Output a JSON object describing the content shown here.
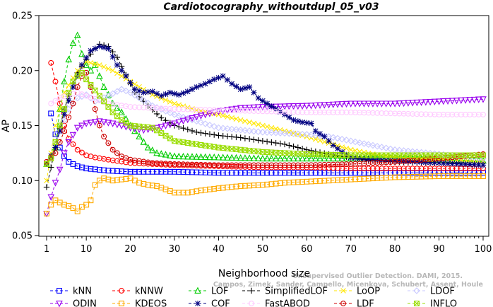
{
  "chart_data": {
    "type": "line",
    "title": "Cardiotocography_withoutdupl_05_v03",
    "xlabel": "Neighborhood size",
    "ylabel": "AP",
    "xlim": [
      1,
      100
    ],
    "ylim": [
      0.05,
      0.25
    ],
    "xticks": [
      "1",
      "10",
      "20",
      "30",
      "40",
      "50",
      "60",
      "70",
      "80",
      "90",
      "100"
    ],
    "yticks": [
      "0.05",
      "0.10",
      "0.15",
      "0.20",
      "0.25"
    ],
    "legend_position": "bottom",
    "watermark": [
      "Campos, Zimek, Sander, Campello, Micenkova, Schubert, Assent, Houle",
      "Unsupervised Outlier Detection. DAMI, 2015."
    ],
    "series": [
      {
        "name": "kNN",
        "color": "#0000ff",
        "marker": "square",
        "dash": "4,3",
        "points": [
          [
            2,
            0.161
          ],
          [
            3,
            0.142
          ],
          [
            4,
            0.13
          ],
          [
            5,
            0.122
          ],
          [
            6,
            0.117
          ],
          [
            8,
            0.113
          ],
          [
            10,
            0.111
          ],
          [
            15,
            0.109
          ],
          [
            20,
            0.108
          ],
          [
            30,
            0.108
          ],
          [
            40,
            0.107
          ],
          [
            50,
            0.107
          ],
          [
            60,
            0.107
          ],
          [
            70,
            0.107
          ],
          [
            80,
            0.107
          ],
          [
            90,
            0.107
          ],
          [
            100,
            0.107
          ]
        ]
      },
      {
        "name": "kNNW",
        "color": "#ff0000",
        "marker": "circle",
        "dash": "4,3",
        "points": [
          [
            2,
            0.207
          ],
          [
            3,
            0.19
          ],
          [
            4,
            0.17
          ],
          [
            5,
            0.15
          ],
          [
            6,
            0.138
          ],
          [
            8,
            0.128
          ],
          [
            10,
            0.123
          ],
          [
            12,
            0.121
          ],
          [
            15,
            0.119
          ],
          [
            20,
            0.116
          ],
          [
            30,
            0.114
          ],
          [
            40,
            0.113
          ],
          [
            50,
            0.112
          ],
          [
            60,
            0.112
          ],
          [
            70,
            0.111
          ],
          [
            80,
            0.111
          ],
          [
            90,
            0.111
          ],
          [
            100,
            0.111
          ]
        ]
      },
      {
        "name": "LOF",
        "color": "#00cc00",
        "marker": "triangle",
        "dash": "4,3",
        "points": [
          [
            1,
            0.115
          ],
          [
            3,
            0.13
          ],
          [
            4,
            0.165
          ],
          [
            5,
            0.19
          ],
          [
            6,
            0.21
          ],
          [
            7,
            0.225
          ],
          [
            8,
            0.232
          ],
          [
            9,
            0.215
          ],
          [
            10,
            0.205
          ],
          [
            11,
            0.2
          ],
          [
            12,
            0.205
          ],
          [
            13,
            0.195
          ],
          [
            14,
            0.185
          ],
          [
            15,
            0.178
          ],
          [
            16,
            0.17
          ],
          [
            18,
            0.162
          ],
          [
            20,
            0.15
          ],
          [
            22,
            0.14
          ],
          [
            24,
            0.13
          ],
          [
            26,
            0.125
          ],
          [
            30,
            0.122
          ],
          [
            40,
            0.121
          ],
          [
            50,
            0.12
          ],
          [
            60,
            0.12
          ],
          [
            70,
            0.12
          ],
          [
            80,
            0.12
          ],
          [
            90,
            0.119
          ],
          [
            100,
            0.118
          ]
        ]
      },
      {
        "name": "SimplifiedLOF",
        "color": "#000000",
        "marker": "plus",
        "dash": "4,3",
        "points": [
          [
            1,
            0.094
          ],
          [
            3,
            0.13
          ],
          [
            5,
            0.165
          ],
          [
            7,
            0.188
          ],
          [
            8,
            0.198
          ],
          [
            10,
            0.21
          ],
          [
            12,
            0.22
          ],
          [
            13,
            0.224
          ],
          [
            15,
            0.222
          ],
          [
            17,
            0.212
          ],
          [
            19,
            0.196
          ],
          [
            21,
            0.18
          ],
          [
            24,
            0.168
          ],
          [
            27,
            0.157
          ],
          [
            30,
            0.15
          ],
          [
            35,
            0.144
          ],
          [
            40,
            0.141
          ],
          [
            45,
            0.139
          ],
          [
            50,
            0.136
          ],
          [
            55,
            0.133
          ],
          [
            60,
            0.128
          ],
          [
            65,
            0.124
          ],
          [
            70,
            0.121
          ],
          [
            75,
            0.118
          ],
          [
            80,
            0.117
          ],
          [
            90,
            0.116
          ],
          [
            100,
            0.116
          ]
        ]
      },
      {
        "name": "LoOP",
        "color": "#ffe600",
        "marker": "x",
        "dash": "4,3",
        "points": [
          [
            1,
            0.1
          ],
          [
            3,
            0.15
          ],
          [
            5,
            0.18
          ],
          [
            8,
            0.2
          ],
          [
            10,
            0.208
          ],
          [
            13,
            0.205
          ],
          [
            16,
            0.2
          ],
          [
            20,
            0.19
          ],
          [
            25,
            0.178
          ],
          [
            30,
            0.17
          ],
          [
            35,
            0.164
          ],
          [
            40,
            0.16
          ],
          [
            45,
            0.155
          ],
          [
            50,
            0.15
          ],
          [
            55,
            0.145
          ],
          [
            60,
            0.14
          ],
          [
            65,
            0.134
          ],
          [
            70,
            0.128
          ],
          [
            75,
            0.124
          ],
          [
            80,
            0.121
          ],
          [
            90,
            0.119
          ],
          [
            100,
            0.118
          ]
        ]
      },
      {
        "name": "LDOF",
        "color": "#c8c8ff",
        "marker": "diamond",
        "dash": "4,3",
        "points": [
          [
            2,
            0.12
          ],
          [
            4,
            0.145
          ],
          [
            6,
            0.165
          ],
          [
            8,
            0.175
          ],
          [
            10,
            0.178
          ],
          [
            12,
            0.172
          ],
          [
            15,
            0.177
          ],
          [
            18,
            0.183
          ],
          [
            20,
            0.18
          ],
          [
            25,
            0.168
          ],
          [
            30,
            0.16
          ],
          [
            35,
            0.154
          ],
          [
            40,
            0.148
          ],
          [
            45,
            0.146
          ],
          [
            50,
            0.144
          ],
          [
            55,
            0.143
          ],
          [
            60,
            0.142
          ],
          [
            65,
            0.14
          ],
          [
            70,
            0.136
          ],
          [
            80,
            0.128
          ],
          [
            90,
            0.124
          ],
          [
            100,
            0.12
          ]
        ]
      },
      {
        "name": "ODIN",
        "color": "#9900ee",
        "marker": "triangle-down",
        "dash": "4,3",
        "points": [
          [
            1,
            0.07
          ],
          [
            2,
            0.085
          ],
          [
            3,
            0.098
          ],
          [
            4,
            0.11
          ],
          [
            5,
            0.125
          ],
          [
            6,
            0.135
          ],
          [
            8,
            0.148
          ],
          [
            10,
            0.152
          ],
          [
            13,
            0.154
          ],
          [
            16,
            0.152
          ],
          [
            20,
            0.148
          ],
          [
            23,
            0.146
          ],
          [
            26,
            0.148
          ],
          [
            30,
            0.152
          ],
          [
            35,
            0.158
          ],
          [
            40,
            0.163
          ],
          [
            45,
            0.166
          ],
          [
            50,
            0.167
          ],
          [
            60,
            0.168
          ],
          [
            70,
            0.17
          ],
          [
            80,
            0.17
          ],
          [
            90,
            0.172
          ],
          [
            100,
            0.174
          ]
        ]
      },
      {
        "name": "KDEOS",
        "color": "#ffaa00",
        "marker": "square",
        "dash": "4,3",
        "points": [
          [
            1,
            0.07
          ],
          [
            2,
            0.078
          ],
          [
            3,
            0.082
          ],
          [
            4,
            0.08
          ],
          [
            5,
            0.078
          ],
          [
            6,
            0.077
          ],
          [
            7,
            0.075
          ],
          [
            8,
            0.072
          ],
          [
            9,
            0.076
          ],
          [
            10,
            0.078
          ],
          [
            11,
            0.082
          ],
          [
            12,
            0.096
          ],
          [
            13,
            0.1
          ],
          [
            14,
            0.102
          ],
          [
            16,
            0.1
          ],
          [
            18,
            0.101
          ],
          [
            20,
            0.102
          ],
          [
            22,
            0.098
          ],
          [
            24,
            0.096
          ],
          [
            26,
            0.095
          ],
          [
            28,
            0.092
          ],
          [
            30,
            0.089
          ],
          [
            33,
            0.089
          ],
          [
            36,
            0.091
          ],
          [
            40,
            0.093
          ],
          [
            45,
            0.095
          ],
          [
            50,
            0.096
          ],
          [
            55,
            0.098
          ],
          [
            60,
            0.099
          ],
          [
            70,
            0.101
          ],
          [
            80,
            0.103
          ],
          [
            90,
            0.104
          ],
          [
            100,
            0.104
          ]
        ]
      },
      {
        "name": "COF",
        "color": "#000080",
        "marker": "star",
        "dash": "4,3",
        "points": [
          [
            1,
            0.115
          ],
          [
            3,
            0.13
          ],
          [
            5,
            0.16
          ],
          [
            7,
            0.185
          ],
          [
            9,
            0.205
          ],
          [
            11,
            0.218
          ],
          [
            12,
            0.22
          ],
          [
            13,
            0.222
          ],
          [
            15,
            0.22
          ],
          [
            17,
            0.205
          ],
          [
            19,
            0.195
          ],
          [
            21,
            0.183
          ],
          [
            23,
            0.18
          ],
          [
            25,
            0.181
          ],
          [
            27,
            0.177
          ],
          [
            29,
            0.18
          ],
          [
            31,
            0.178
          ],
          [
            33,
            0.181
          ],
          [
            35,
            0.185
          ],
          [
            37,
            0.188
          ],
          [
            39,
            0.192
          ],
          [
            41,
            0.195
          ],
          [
            43,
            0.188
          ],
          [
            45,
            0.183
          ],
          [
            47,
            0.185
          ],
          [
            49,
            0.175
          ],
          [
            51,
            0.17
          ],
          [
            53,
            0.165
          ],
          [
            55,
            0.16
          ],
          [
            57,
            0.155
          ],
          [
            59,
            0.153
          ],
          [
            61,
            0.152
          ],
          [
            62,
            0.145
          ],
          [
            64,
            0.14
          ],
          [
            66,
            0.132
          ],
          [
            68,
            0.126
          ],
          [
            70,
            0.121
          ],
          [
            75,
            0.119
          ],
          [
            80,
            0.118
          ],
          [
            90,
            0.116
          ],
          [
            100,
            0.114
          ]
        ]
      },
      {
        "name": "FastABOD",
        "color": "#ffc8ff",
        "marker": "circle",
        "dash": "4,3",
        "points": [
          [
            2,
            0.17
          ],
          [
            4,
            0.175
          ],
          [
            6,
            0.178
          ],
          [
            8,
            0.18
          ],
          [
            10,
            0.177
          ],
          [
            15,
            0.17
          ],
          [
            20,
            0.167
          ],
          [
            30,
            0.165
          ],
          [
            40,
            0.164
          ],
          [
            50,
            0.163
          ],
          [
            60,
            0.162
          ],
          [
            70,
            0.162
          ],
          [
            80,
            0.161
          ],
          [
            90,
            0.16
          ],
          [
            100,
            0.16
          ]
        ]
      },
      {
        "name": "LDF",
        "color": "#cc0000",
        "marker": "circle-dot",
        "dash": "4,3",
        "points": [
          [
            1,
            0.117
          ],
          [
            3,
            0.125
          ],
          [
            5,
            0.145
          ],
          [
            7,
            0.17
          ],
          [
            8,
            0.185
          ],
          [
            9,
            0.195
          ],
          [
            10,
            0.198
          ],
          [
            11,
            0.185
          ],
          [
            12,
            0.165
          ],
          [
            13,
            0.15
          ],
          [
            14,
            0.14
          ],
          [
            16,
            0.128
          ],
          [
            18,
            0.122
          ],
          [
            20,
            0.119
          ],
          [
            25,
            0.116
          ],
          [
            30,
            0.115
          ],
          [
            40,
            0.114
          ],
          [
            50,
            0.114
          ],
          [
            60,
            0.114
          ],
          [
            70,
            0.115
          ],
          [
            80,
            0.117
          ],
          [
            90,
            0.12
          ],
          [
            100,
            0.124
          ]
        ]
      },
      {
        "name": "INFLO",
        "color": "#99dd00",
        "marker": "square-x",
        "dash": "4,3",
        "points": [
          [
            1,
            0.115
          ],
          [
            2,
            0.12
          ],
          [
            3,
            0.135
          ],
          [
            4,
            0.15
          ],
          [
            5,
            0.165
          ],
          [
            6,
            0.18
          ],
          [
            7,
            0.19
          ],
          [
            8,
            0.195
          ],
          [
            9,
            0.198
          ],
          [
            10,
            0.192
          ],
          [
            12,
            0.182
          ],
          [
            14,
            0.172
          ],
          [
            16,
            0.162
          ],
          [
            18,
            0.155
          ],
          [
            20,
            0.15
          ],
          [
            25,
            0.148
          ],
          [
            30,
            0.136
          ],
          [
            35,
            0.133
          ],
          [
            40,
            0.13
          ],
          [
            45,
            0.128
          ],
          [
            50,
            0.126
          ],
          [
            60,
            0.124
          ],
          [
            70,
            0.123
          ],
          [
            80,
            0.123
          ],
          [
            90,
            0.123
          ],
          [
            100,
            0.123
          ]
        ]
      }
    ]
  }
}
